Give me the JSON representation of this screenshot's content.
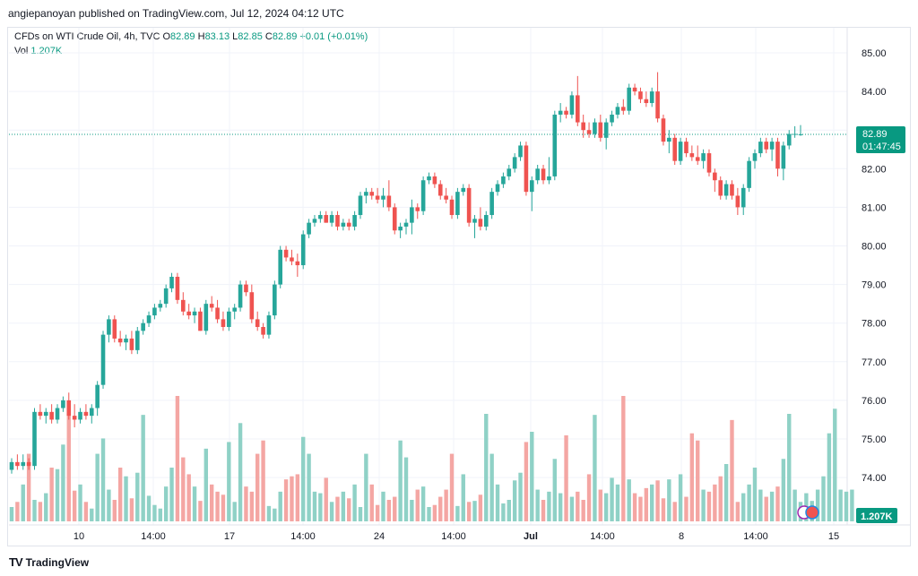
{
  "header": {
    "publisher_line": "angiepanoyan published on TradingView.com, Jul 12, 2024 04:12 UTC"
  },
  "legend": {
    "symbol": "CFDs on WTI Crude Oil, 4h, TVC",
    "o_label": "O",
    "o_value": "82.89",
    "h_label": "H",
    "h_value": "83.13",
    "l_label": "L",
    "l_value": "82.85",
    "c_label": "C",
    "c_value": "82.89",
    "change": "+0.01 (+0.01%)",
    "vol_label": "Vol",
    "vol_value": "1.207K"
  },
  "price_badge": {
    "price": "82.89",
    "countdown": "01:47:45"
  },
  "volume_badge": "1.207K",
  "footer": {
    "logo": "TV",
    "brand": "TradingView"
  },
  "colors": {
    "up": "#26a69a",
    "down": "#ef5350",
    "up_vol": "#8fd1c6",
    "down_vol": "#f4a6a3",
    "badge": "#089981"
  },
  "chart_data": {
    "type": "candlestick",
    "title": "CFDs on WTI Crude Oil, 4h, TVC",
    "y_axis": {
      "ticks": [
        "74.00",
        "75.00",
        "76.00",
        "77.00",
        "78.00",
        "79.00",
        "80.00",
        "81.00",
        "82.00",
        "83.00",
        "84.00",
        "85.00"
      ],
      "ylim": [
        73.3,
        85.3
      ]
    },
    "x_axis": {
      "ticks": [
        "10",
        "14:00",
        "17",
        "14:00",
        "24",
        "14:00",
        "Jul",
        "14:00",
        "8",
        "14:00",
        "15"
      ]
    },
    "last_price": 82.89,
    "candles": [
      {
        "o": 74.2,
        "h": 74.5,
        "l": 74.1,
        "c": 74.4
      },
      {
        "o": 74.4,
        "h": 74.6,
        "l": 74.2,
        "c": 74.3
      },
      {
        "o": 74.3,
        "h": 74.6,
        "l": 74.2,
        "c": 74.4
      },
      {
        "o": 74.4,
        "h": 74.5,
        "l": 74.2,
        "c": 74.3
      },
      {
        "o": 74.3,
        "h": 75.8,
        "l": 74.2,
        "c": 75.7
      },
      {
        "o": 75.7,
        "h": 75.9,
        "l": 75.5,
        "c": 75.6
      },
      {
        "o": 75.6,
        "h": 75.8,
        "l": 75.4,
        "c": 75.7
      },
      {
        "o": 75.7,
        "h": 75.9,
        "l": 75.4,
        "c": 75.5
      },
      {
        "o": 75.5,
        "h": 75.9,
        "l": 75.4,
        "c": 75.8
      },
      {
        "o": 75.8,
        "h": 76.1,
        "l": 75.7,
        "c": 76.0
      },
      {
        "o": 76.0,
        "h": 76.2,
        "l": 75.5,
        "c": 75.6
      },
      {
        "o": 75.6,
        "h": 75.9,
        "l": 75.3,
        "c": 75.5
      },
      {
        "o": 75.5,
        "h": 75.8,
        "l": 75.4,
        "c": 75.7
      },
      {
        "o": 75.7,
        "h": 75.9,
        "l": 75.5,
        "c": 75.6
      },
      {
        "o": 75.6,
        "h": 75.9,
        "l": 75.4,
        "c": 75.8
      },
      {
        "o": 75.8,
        "h": 76.5,
        "l": 75.6,
        "c": 76.4
      },
      {
        "o": 76.4,
        "h": 77.8,
        "l": 76.3,
        "c": 77.7
      },
      {
        "o": 77.7,
        "h": 78.2,
        "l": 77.5,
        "c": 78.1
      },
      {
        "o": 78.1,
        "h": 78.2,
        "l": 77.5,
        "c": 77.6
      },
      {
        "o": 77.6,
        "h": 77.8,
        "l": 77.4,
        "c": 77.5
      },
      {
        "o": 77.5,
        "h": 77.7,
        "l": 77.3,
        "c": 77.6
      },
      {
        "o": 77.6,
        "h": 77.8,
        "l": 77.2,
        "c": 77.3
      },
      {
        "o": 77.3,
        "h": 77.9,
        "l": 77.2,
        "c": 77.8
      },
      {
        "o": 77.8,
        "h": 78.1,
        "l": 77.7,
        "c": 78.0
      },
      {
        "o": 78.0,
        "h": 78.3,
        "l": 77.9,
        "c": 78.2
      },
      {
        "o": 78.2,
        "h": 78.5,
        "l": 78.1,
        "c": 78.4
      },
      {
        "o": 78.4,
        "h": 78.6,
        "l": 78.3,
        "c": 78.5
      },
      {
        "o": 78.5,
        "h": 79.0,
        "l": 78.4,
        "c": 78.9
      },
      {
        "o": 78.9,
        "h": 79.3,
        "l": 78.8,
        "c": 79.2
      },
      {
        "o": 79.2,
        "h": 79.3,
        "l": 78.5,
        "c": 78.6
      },
      {
        "o": 78.6,
        "h": 78.8,
        "l": 78.2,
        "c": 78.3
      },
      {
        "o": 78.3,
        "h": 78.5,
        "l": 78.1,
        "c": 78.2
      },
      {
        "o": 78.2,
        "h": 78.4,
        "l": 78.0,
        "c": 78.3
      },
      {
        "o": 78.3,
        "h": 78.4,
        "l": 77.8,
        "c": 77.8
      },
      {
        "o": 77.8,
        "h": 78.6,
        "l": 77.7,
        "c": 78.5
      },
      {
        "o": 78.5,
        "h": 78.7,
        "l": 78.3,
        "c": 78.4
      },
      {
        "o": 78.4,
        "h": 78.6,
        "l": 78.0,
        "c": 78.1
      },
      {
        "o": 78.1,
        "h": 78.3,
        "l": 77.8,
        "c": 77.9
      },
      {
        "o": 77.9,
        "h": 78.4,
        "l": 77.8,
        "c": 78.3
      },
      {
        "o": 78.3,
        "h": 78.5,
        "l": 78.1,
        "c": 78.4
      },
      {
        "o": 78.4,
        "h": 79.1,
        "l": 78.3,
        "c": 79.0
      },
      {
        "o": 79.0,
        "h": 79.1,
        "l": 78.7,
        "c": 78.8
      },
      {
        "o": 78.8,
        "h": 79.0,
        "l": 78.0,
        "c": 78.1
      },
      {
        "o": 78.1,
        "h": 78.3,
        "l": 77.8,
        "c": 77.9
      },
      {
        "o": 77.9,
        "h": 78.0,
        "l": 77.6,
        "c": 77.7
      },
      {
        "o": 77.7,
        "h": 78.3,
        "l": 77.6,
        "c": 78.2
      },
      {
        "o": 78.2,
        "h": 79.1,
        "l": 78.1,
        "c": 79.0
      },
      {
        "o": 79.0,
        "h": 80.0,
        "l": 78.9,
        "c": 79.9
      },
      {
        "o": 79.9,
        "h": 80.0,
        "l": 79.6,
        "c": 79.7
      },
      {
        "o": 79.7,
        "h": 79.9,
        "l": 79.5,
        "c": 79.6
      },
      {
        "o": 79.6,
        "h": 79.8,
        "l": 79.2,
        "c": 79.5
      },
      {
        "o": 79.5,
        "h": 80.4,
        "l": 79.4,
        "c": 80.3
      },
      {
        "o": 80.3,
        "h": 80.7,
        "l": 80.2,
        "c": 80.6
      },
      {
        "o": 80.6,
        "h": 80.8,
        "l": 80.5,
        "c": 80.7
      },
      {
        "o": 80.7,
        "h": 80.9,
        "l": 80.6,
        "c": 80.8
      },
      {
        "o": 80.8,
        "h": 80.9,
        "l": 80.6,
        "c": 80.6
      },
      {
        "o": 80.6,
        "h": 80.9,
        "l": 80.5,
        "c": 80.8
      },
      {
        "o": 80.8,
        "h": 80.9,
        "l": 80.4,
        "c": 80.5
      },
      {
        "o": 80.5,
        "h": 80.7,
        "l": 80.4,
        "c": 80.6
      },
      {
        "o": 80.6,
        "h": 80.7,
        "l": 80.4,
        "c": 80.5
      },
      {
        "o": 80.5,
        "h": 80.9,
        "l": 80.4,
        "c": 80.8
      },
      {
        "o": 80.8,
        "h": 81.4,
        "l": 80.7,
        "c": 81.3
      },
      {
        "o": 81.3,
        "h": 81.5,
        "l": 81.1,
        "c": 81.4
      },
      {
        "o": 81.4,
        "h": 81.5,
        "l": 81.2,
        "c": 81.3
      },
      {
        "o": 81.3,
        "h": 81.5,
        "l": 81.1,
        "c": 81.2
      },
      {
        "o": 81.2,
        "h": 81.5,
        "l": 81.0,
        "c": 81.3
      },
      {
        "o": 81.3,
        "h": 81.7,
        "l": 80.9,
        "c": 81.0
      },
      {
        "o": 81.0,
        "h": 81.1,
        "l": 80.3,
        "c": 80.4
      },
      {
        "o": 80.4,
        "h": 80.6,
        "l": 80.2,
        "c": 80.5
      },
      {
        "o": 80.5,
        "h": 80.7,
        "l": 80.3,
        "c": 80.6
      },
      {
        "o": 80.6,
        "h": 81.2,
        "l": 80.3,
        "c": 81.0
      },
      {
        "o": 81.0,
        "h": 81.1,
        "l": 80.7,
        "c": 80.9
      },
      {
        "o": 80.9,
        "h": 81.8,
        "l": 80.8,
        "c": 81.7
      },
      {
        "o": 81.7,
        "h": 81.9,
        "l": 81.6,
        "c": 81.8
      },
      {
        "o": 81.8,
        "h": 81.9,
        "l": 81.5,
        "c": 81.6
      },
      {
        "o": 81.6,
        "h": 81.7,
        "l": 81.2,
        "c": 81.3
      },
      {
        "o": 81.3,
        "h": 81.5,
        "l": 81.1,
        "c": 81.2
      },
      {
        "o": 81.2,
        "h": 81.3,
        "l": 80.7,
        "c": 80.8
      },
      {
        "o": 80.8,
        "h": 81.5,
        "l": 80.7,
        "c": 81.4
      },
      {
        "o": 81.4,
        "h": 81.6,
        "l": 81.3,
        "c": 81.5
      },
      {
        "o": 81.5,
        "h": 81.6,
        "l": 80.5,
        "c": 80.6
      },
      {
        "o": 80.6,
        "h": 80.8,
        "l": 80.2,
        "c": 80.7
      },
      {
        "o": 80.7,
        "h": 81.0,
        "l": 80.4,
        "c": 80.5
      },
      {
        "o": 80.5,
        "h": 80.9,
        "l": 80.4,
        "c": 80.8
      },
      {
        "o": 80.8,
        "h": 81.5,
        "l": 80.7,
        "c": 81.4
      },
      {
        "o": 81.4,
        "h": 81.7,
        "l": 81.3,
        "c": 81.6
      },
      {
        "o": 81.6,
        "h": 81.9,
        "l": 81.5,
        "c": 81.8
      },
      {
        "o": 81.8,
        "h": 82.1,
        "l": 81.7,
        "c": 82.0
      },
      {
        "o": 82.0,
        "h": 82.4,
        "l": 81.9,
        "c": 82.3
      },
      {
        "o": 82.3,
        "h": 82.7,
        "l": 82.2,
        "c": 82.6
      },
      {
        "o": 82.6,
        "h": 82.7,
        "l": 81.3,
        "c": 81.4
      },
      {
        "o": 81.4,
        "h": 81.8,
        "l": 80.9,
        "c": 81.7
      },
      {
        "o": 81.7,
        "h": 82.1,
        "l": 81.6,
        "c": 82.0
      },
      {
        "o": 82.0,
        "h": 82.1,
        "l": 81.6,
        "c": 81.7
      },
      {
        "o": 81.7,
        "h": 82.3,
        "l": 81.6,
        "c": 81.8
      },
      {
        "o": 81.8,
        "h": 83.5,
        "l": 81.7,
        "c": 83.4
      },
      {
        "o": 83.4,
        "h": 83.7,
        "l": 83.2,
        "c": 83.5
      },
      {
        "o": 83.5,
        "h": 83.6,
        "l": 83.3,
        "c": 83.4
      },
      {
        "o": 83.4,
        "h": 84.0,
        "l": 83.3,
        "c": 83.9
      },
      {
        "o": 83.9,
        "h": 84.4,
        "l": 83.1,
        "c": 83.2
      },
      {
        "o": 83.2,
        "h": 83.4,
        "l": 82.8,
        "c": 83.0
      },
      {
        "o": 83.0,
        "h": 83.2,
        "l": 82.8,
        "c": 82.9
      },
      {
        "o": 82.9,
        "h": 83.3,
        "l": 82.8,
        "c": 83.2
      },
      {
        "o": 83.2,
        "h": 83.4,
        "l": 82.7,
        "c": 82.8
      },
      {
        "o": 82.8,
        "h": 83.3,
        "l": 82.5,
        "c": 83.2
      },
      {
        "o": 83.2,
        "h": 83.5,
        "l": 83.1,
        "c": 83.4
      },
      {
        "o": 83.4,
        "h": 83.7,
        "l": 83.3,
        "c": 83.6
      },
      {
        "o": 83.6,
        "h": 83.8,
        "l": 83.4,
        "c": 83.5
      },
      {
        "o": 83.5,
        "h": 84.2,
        "l": 83.4,
        "c": 84.1
      },
      {
        "o": 84.1,
        "h": 84.2,
        "l": 83.9,
        "c": 84.0
      },
      {
        "o": 84.0,
        "h": 84.1,
        "l": 83.7,
        "c": 83.8
      },
      {
        "o": 83.8,
        "h": 84.0,
        "l": 83.6,
        "c": 83.7
      },
      {
        "o": 83.7,
        "h": 84.1,
        "l": 83.6,
        "c": 84.0
      },
      {
        "o": 84.0,
        "h": 84.5,
        "l": 83.2,
        "c": 83.3
      },
      {
        "o": 83.3,
        "h": 83.4,
        "l": 82.6,
        "c": 82.7
      },
      {
        "o": 82.7,
        "h": 83.0,
        "l": 82.4,
        "c": 82.8
      },
      {
        "o": 82.8,
        "h": 82.9,
        "l": 82.1,
        "c": 82.2
      },
      {
        "o": 82.2,
        "h": 82.8,
        "l": 82.1,
        "c": 82.7
      },
      {
        "o": 82.7,
        "h": 82.8,
        "l": 82.3,
        "c": 82.4
      },
      {
        "o": 82.4,
        "h": 82.6,
        "l": 82.2,
        "c": 82.3
      },
      {
        "o": 82.3,
        "h": 82.6,
        "l": 82.1,
        "c": 82.2
      },
      {
        "o": 82.2,
        "h": 82.5,
        "l": 82.0,
        "c": 82.4
      },
      {
        "o": 82.4,
        "h": 82.5,
        "l": 81.8,
        "c": 81.9
      },
      {
        "o": 81.9,
        "h": 82.0,
        "l": 81.4,
        "c": 81.7
      },
      {
        "o": 81.7,
        "h": 81.8,
        "l": 81.2,
        "c": 81.3
      },
      {
        "o": 81.3,
        "h": 81.7,
        "l": 81.2,
        "c": 81.6
      },
      {
        "o": 81.6,
        "h": 81.7,
        "l": 81.2,
        "c": 81.3
      },
      {
        "o": 81.3,
        "h": 81.5,
        "l": 80.8,
        "c": 81.0
      },
      {
        "o": 81.0,
        "h": 81.6,
        "l": 80.8,
        "c": 81.5
      },
      {
        "o": 81.5,
        "h": 82.3,
        "l": 81.4,
        "c": 82.2
      },
      {
        "o": 82.2,
        "h": 82.5,
        "l": 82.0,
        "c": 82.4
      },
      {
        "o": 82.4,
        "h": 82.8,
        "l": 82.3,
        "c": 82.7
      },
      {
        "o": 82.7,
        "h": 82.8,
        "l": 82.4,
        "c": 82.5
      },
      {
        "o": 82.5,
        "h": 82.8,
        "l": 82.2,
        "c": 82.7
      },
      {
        "o": 82.7,
        "h": 82.8,
        "l": 81.8,
        "c": 82.0
      },
      {
        "o": 82.0,
        "h": 82.7,
        "l": 81.7,
        "c": 82.6
      },
      {
        "o": 82.6,
        "h": 83.0,
        "l": 82.5,
        "c": 82.9
      },
      {
        "o": 82.9,
        "h": 83.1,
        "l": 82.8,
        "c": 82.9
      },
      {
        "o": 82.89,
        "h": 83.13,
        "l": 82.85,
        "c": 82.89
      }
    ],
    "volume": [
      0.28,
      0.38,
      0.72,
      1.32,
      0.42,
      0.38,
      0.55,
      1.05,
      1.02,
      1.5,
      2.25,
      0.6,
      0.72,
      0.38,
      0.25,
      1.32,
      1.62,
      0.62,
      0.42,
      1.05,
      0.88,
      0.45,
      0.95,
      2.08,
      0.5,
      0.32,
      0.25,
      0.68,
      1.05,
      2.45,
      1.25,
      0.92,
      0.68,
      0.4,
      1.42,
      0.72,
      0.58,
      0.52,
      1.55,
      0.38,
      1.92,
      0.68,
      0.58,
      1.32,
      1.58,
      0.3,
      0.25,
      0.58,
      0.82,
      0.88,
      0.92,
      1.65,
      1.32,
      0.58,
      0.55,
      0.85,
      0.38,
      0.48,
      0.58,
      0.45,
      0.72,
      0.28,
      1.32,
      0.72,
      0.32,
      0.58,
      0.42,
      0.48,
      1.58,
      1.25,
      0.42,
      0.62,
      0.68,
      0.28,
      0.32,
      0.48,
      0.62,
      1.32,
      0.3,
      0.92,
      0.38,
      0.4,
      0.52,
      2.1,
      1.32,
      0.72,
      0.35,
      0.42,
      0.8,
      0.95,
      1.55,
      1.75,
      0.62,
      0.42,
      0.58,
      1.22,
      0.55,
      1.68,
      0.48,
      0.58,
      0.42,
      0.92,
      2.08,
      0.62,
      0.55,
      0.85,
      0.72,
      2.45,
      0.82,
      0.55,
      0.48,
      0.65,
      0.72,
      0.8,
      0.45,
      0.82,
      0.38,
      0.92,
      0.48,
      1.72,
      1.58,
      0.62,
      0.58,
      0.72,
      0.88,
      1.12,
      1.98,
      0.38,
      0.55,
      0.72,
      1.05,
      0.62,
      0.48,
      0.58,
      0.68,
      1.22,
      2.1,
      0.62,
      0.38,
      0.55,
      0.4,
      0.62,
      0.88,
      1.72,
      2.2,
      0.62,
      0.58,
      0.62
    ]
  }
}
